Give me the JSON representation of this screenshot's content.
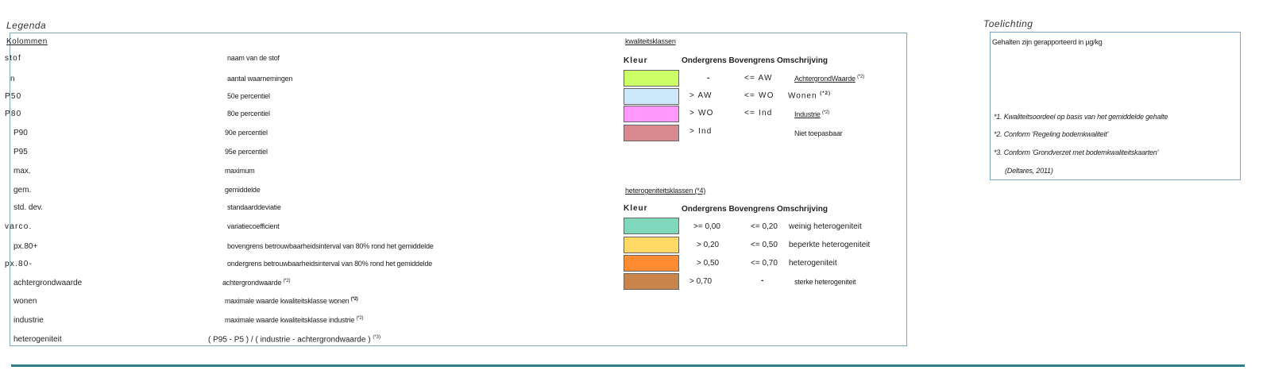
{
  "legend": {
    "title": "Legenda",
    "columns_header": "Kolommen",
    "rows": [
      {
        "key": "stof",
        "desc": "naam van de stof"
      },
      {
        "key": "n",
        "desc": "aantal waarnemingen"
      },
      {
        "key": "P50",
        "desc": "50e percentiel"
      },
      {
        "key": "P80",
        "desc": "80e percentiel"
      },
      {
        "key": "P90",
        "desc": "90e percentiel"
      },
      {
        "key": "P95",
        "desc": "95e percentiel"
      },
      {
        "key": "max.",
        "desc": "maximum"
      },
      {
        "key": "gem.",
        "desc": "gemiddelde"
      },
      {
        "key": "std. dev.",
        "desc": "standaarddeviatie"
      },
      {
        "key": "varco.",
        "desc": "variatiecoefficient"
      },
      {
        "key": "px.80+",
        "desc": "bovengrens betrouwbaarheidsinterval van 80% rond het gemiddelde"
      },
      {
        "key": "px.80-",
        "desc": "ondergrens betrouwbaarheidsinterval van 80% rond het gemiddelde"
      },
      {
        "key": "achtergrondwaarde",
        "desc": "achtergrondwaarde",
        "note": "(*2)"
      },
      {
        "key": "wonen",
        "desc": "maximale waarde kwaliteitsklasse wonen",
        "note": "(*2)"
      },
      {
        "key": "industrie",
        "desc": "maximale waarde kwaliteitsklasse industrie",
        "note": "(*2)"
      },
      {
        "key": "heterogeniteit",
        "desc": "( P95 - P5 ) / ( industrie - achtergrondwaarde )",
        "note": "(*3)"
      }
    ],
    "quality": {
      "title": "kwaliteitsklassen",
      "headers": {
        "kleur": "Kleur",
        "rest": "Ondergrens Bovengrens Omschrijving"
      },
      "rows": [
        {
          "color": "#ccff66",
          "lower": "-",
          "upper": "<= AW",
          "desc": "AchtergrondWaarde",
          "note": "(*2)"
        },
        {
          "color": "#cce8fa",
          "lower": "> AW",
          "upper": "<= WO",
          "desc": "Wonen",
          "note": "(*2)"
        },
        {
          "color": "#ff99ff",
          "lower": "> WO",
          "upper": "<= Ind",
          "desc": "Industrie",
          "note": "(*2)"
        },
        {
          "color": "#d88a90",
          "lower": "> Ind",
          "upper": "",
          "desc": "Niet toepasbaar",
          "note": ""
        }
      ]
    },
    "heterogeneity": {
      "title": "heterogeniteitsklassen (*4)",
      "headers": {
        "kleur": "Kleur",
        "rest": "Ondergrens Bovengrens Omschrijving"
      },
      "rows": [
        {
          "color": "#7fd8bb",
          "lower": ">= 0,00",
          "upper": "<= 0,20",
          "desc": "weinig heterogeniteit"
        },
        {
          "color": "#ffd966",
          "lower": "> 0,20",
          "upper": "<= 0,50",
          "desc": "beperkte heterogeniteit"
        },
        {
          "color": "#ff8c33",
          "lower": "> 0,50",
          "upper": "<= 0,70",
          "desc": "heterogeniteit"
        },
        {
          "color": "#c8844a",
          "lower": "> 0,70",
          "upper": "-",
          "desc": "sterke heterogeniteit"
        }
      ]
    }
  },
  "explanation": {
    "title": "Toelichting",
    "intro": "Gehalten zijn gerapporteerd in µg/kg",
    "notes": [
      "*1. Kwaliteitsoordeel op basis van het gemiddelde gehalte",
      "*2. Conform 'Regeling bodemkwaliteit'",
      "*3. Conform 'Grondverzet met bodemkwaliteitskaarten'",
      "(Deltares, 2011)"
    ]
  }
}
